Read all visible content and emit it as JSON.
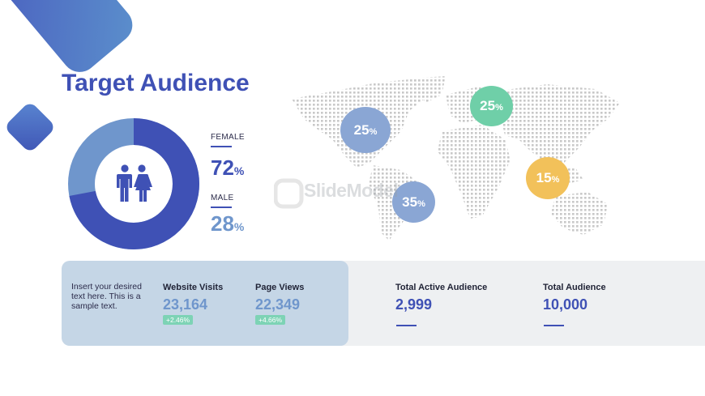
{
  "title": "Target Audience",
  "gender": {
    "female": {
      "label": "FEMALE",
      "value": "72",
      "unit": "%"
    },
    "male": {
      "label": "MALE",
      "value": "28",
      "unit": "%"
    },
    "female_fraction": 0.72
  },
  "map": {
    "bubbles": [
      {
        "name": "north-america",
        "value": "25",
        "unit": "%",
        "color": "#8aa6d4"
      },
      {
        "name": "europe",
        "value": "25",
        "unit": "%",
        "color": "#6fcfa8"
      },
      {
        "name": "south-america",
        "value": "35",
        "unit": "%",
        "color": "#8aa6d4"
      },
      {
        "name": "asia",
        "value": "15",
        "unit": "%",
        "color": "#f2c15a"
      }
    ]
  },
  "watermark": "SlideModel",
  "panel": {
    "description": "Insert your desired text here. This is a sample text.",
    "website_visits": {
      "label": "Website Visits",
      "value": "23,164",
      "change": "+2.46%"
    },
    "page_views": {
      "label": "Page Views",
      "value": "22,349",
      "change": "+4.66%"
    },
    "total_active": {
      "label": "Total Active Audience",
      "value": "2,999"
    },
    "total_audience": {
      "label": "Total Audience",
      "value": "10,000"
    }
  },
  "colors": {
    "accent": "#3f51b5",
    "light_blue": "#6f96cc",
    "panel": "#c5d6e6",
    "green": "#7dd3b5"
  }
}
